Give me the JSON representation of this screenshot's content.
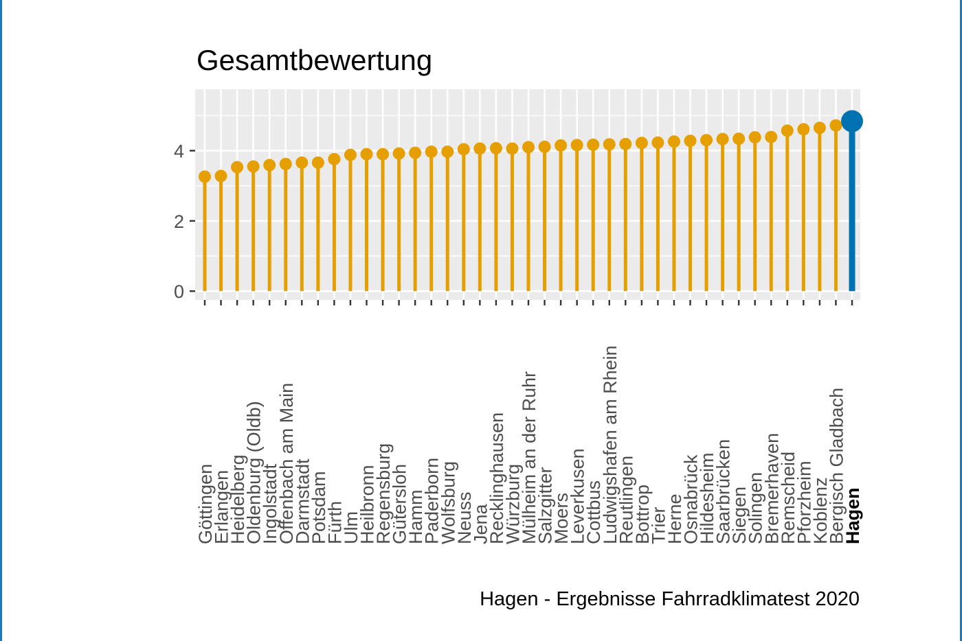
{
  "chart_data": {
    "type": "lollipop",
    "title": "Gesamtbewertung",
    "caption": "Hagen - Ergebnisse Fahrradklimatest 2020",
    "xlabel": "",
    "ylabel": "",
    "ylim": [
      -0.25,
      5.75
    ],
    "yticks": [
      0,
      2,
      4
    ],
    "grid": true,
    "background": "#ebebeb",
    "grid_color": "#ffffff",
    "default_color": "#e69f00",
    "highlight_color": "#0072b2",
    "highlight": "Hagen",
    "categories": [
      "Göttingen",
      "Erlangen",
      "Heidelberg",
      "Oldenburg (Oldb)",
      "Ingolstadt",
      "Offenbach am Main",
      "Darmstadt",
      "Potsdam",
      "Fürth",
      "Ulm",
      "Heilbronn",
      "Regensburg",
      "Gütersloh",
      "Hamm",
      "Paderborn",
      "Wolfsburg",
      "Neuss",
      "Jena",
      "Recklinghausen",
      "Würzburg",
      "Mülheim an der Ruhr",
      "Salzgitter",
      "Moers",
      "Leverkusen",
      "Cottbus",
      "Ludwigshafen am Rhein",
      "Reutlingen",
      "Bottrop",
      "Trier",
      "Herne",
      "Osnabrück",
      "Hildesheim",
      "Saarbrücken",
      "Siegen",
      "Solingen",
      "Bremerhaven",
      "Remscheid",
      "Pforzheim",
      "Koblenz",
      "Bergisch Gladbach",
      "Hagen"
    ],
    "values": [
      3.26,
      3.28,
      3.53,
      3.55,
      3.59,
      3.62,
      3.66,
      3.66,
      3.76,
      3.88,
      3.9,
      3.9,
      3.92,
      3.94,
      3.97,
      3.97,
      4.04,
      4.06,
      4.07,
      4.06,
      4.1,
      4.11,
      4.15,
      4.16,
      4.17,
      4.18,
      4.19,
      4.22,
      4.23,
      4.26,
      4.28,
      4.3,
      4.33,
      4.34,
      4.38,
      4.39,
      4.57,
      4.61,
      4.65,
      4.72,
      4.84
    ]
  }
}
